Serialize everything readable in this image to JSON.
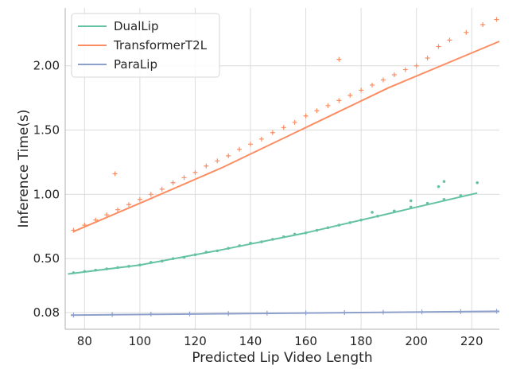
{
  "chart_data": {
    "type": "scatter",
    "xlabel": "Predicted Lip Video Length",
    "ylabel": "Inference Time(s)",
    "xlim": [
      73,
      230
    ],
    "ylim": [
      -0.05,
      2.45
    ],
    "xticks": [
      80,
      100,
      120,
      140,
      160,
      180,
      200,
      220
    ],
    "xtick_labels": [
      "80",
      "100",
      "120",
      "140",
      "160",
      "180",
      "200",
      "220"
    ],
    "yticks": [
      0.08,
      0.5,
      1.0,
      1.5,
      2.0
    ],
    "ytick_labels": [
      "0.08",
      "0.50",
      "1.00",
      "1.50",
      "2.00"
    ],
    "grid": true,
    "legend_position": "top-left",
    "series": [
      {
        "name": "DualLip",
        "color": "#66c2a5",
        "marker": "dot",
        "fit_line": [
          [
            74,
            0.38
          ],
          [
            100,
            0.45
          ],
          [
            130,
            0.57
          ],
          [
            160,
            0.7
          ],
          [
            190,
            0.85
          ],
          [
            222,
            1.01
          ]
        ],
        "points": [
          [
            76,
            0.39
          ],
          [
            80,
            0.4
          ],
          [
            84,
            0.41
          ],
          [
            88,
            0.42
          ],
          [
            92,
            0.43
          ],
          [
            96,
            0.44
          ],
          [
            100,
            0.45
          ],
          [
            104,
            0.47
          ],
          [
            108,
            0.48
          ],
          [
            112,
            0.5
          ],
          [
            116,
            0.51
          ],
          [
            120,
            0.53
          ],
          [
            124,
            0.55
          ],
          [
            128,
            0.56
          ],
          [
            132,
            0.58
          ],
          [
            136,
            0.6
          ],
          [
            140,
            0.62
          ],
          [
            144,
            0.63
          ],
          [
            148,
            0.65
          ],
          [
            152,
            0.67
          ],
          [
            156,
            0.69
          ],
          [
            160,
            0.7
          ],
          [
            164,
            0.72
          ],
          [
            168,
            0.74
          ],
          [
            172,
            0.76
          ],
          [
            176,
            0.78
          ],
          [
            180,
            0.8
          ],
          [
            186,
            0.83
          ],
          [
            192,
            0.87
          ],
          [
            198,
            0.9
          ],
          [
            204,
            0.93
          ],
          [
            210,
            0.96
          ],
          [
            216,
            0.99
          ],
          [
            222,
            1.09
          ],
          [
            210,
            1.1
          ],
          [
            208,
            1.06
          ],
          [
            198,
            0.95
          ],
          [
            184,
            0.86
          ]
        ]
      },
      {
        "name": "TransformerT2L",
        "color": "#fc8d62",
        "marker": "plus",
        "fit_line": [
          [
            76,
            0.71
          ],
          [
            100,
            0.93
          ],
          [
            130,
            1.21
          ],
          [
            160,
            1.52
          ],
          [
            190,
            1.83
          ],
          [
            230,
            2.19
          ]
        ],
        "points": [
          [
            76,
            0.72
          ],
          [
            80,
            0.76
          ],
          [
            84,
            0.8
          ],
          [
            88,
            0.84
          ],
          [
            91,
            1.16
          ],
          [
            92,
            0.88
          ],
          [
            96,
            0.92
          ],
          [
            100,
            0.96
          ],
          [
            104,
            1.0
          ],
          [
            108,
            1.04
          ],
          [
            112,
            1.09
          ],
          [
            116,
            1.13
          ],
          [
            120,
            1.17
          ],
          [
            124,
            1.22
          ],
          [
            128,
            1.26
          ],
          [
            132,
            1.3
          ],
          [
            136,
            1.35
          ],
          [
            140,
            1.39
          ],
          [
            144,
            1.43
          ],
          [
            148,
            1.48
          ],
          [
            152,
            1.52
          ],
          [
            156,
            1.56
          ],
          [
            160,
            1.61
          ],
          [
            164,
            1.65
          ],
          [
            168,
            1.69
          ],
          [
            172,
            2.05
          ],
          [
            172,
            1.73
          ],
          [
            176,
            1.77
          ],
          [
            180,
            1.81
          ],
          [
            184,
            1.85
          ],
          [
            188,
            1.89
          ],
          [
            192,
            1.93
          ],
          [
            196,
            1.97
          ],
          [
            200,
            2.0
          ],
          [
            204,
            2.06
          ],
          [
            208,
            2.15
          ],
          [
            212,
            2.2
          ],
          [
            218,
            2.26
          ],
          [
            224,
            2.32
          ],
          [
            229,
            2.36
          ]
        ]
      },
      {
        "name": "ParaLip",
        "color": "#8da0cb",
        "marker": "plus",
        "fit_line": [
          [
            75,
            0.06
          ],
          [
            230,
            0.09
          ]
        ],
        "points": [
          [
            76,
            0.06
          ],
          [
            90,
            0.065
          ],
          [
            104,
            0.068
          ],
          [
            118,
            0.07
          ],
          [
            132,
            0.072
          ],
          [
            146,
            0.075
          ],
          [
            160,
            0.078
          ],
          [
            174,
            0.08
          ],
          [
            188,
            0.083
          ],
          [
            202,
            0.085
          ],
          [
            216,
            0.088
          ],
          [
            229,
            0.09
          ]
        ]
      }
    ]
  }
}
